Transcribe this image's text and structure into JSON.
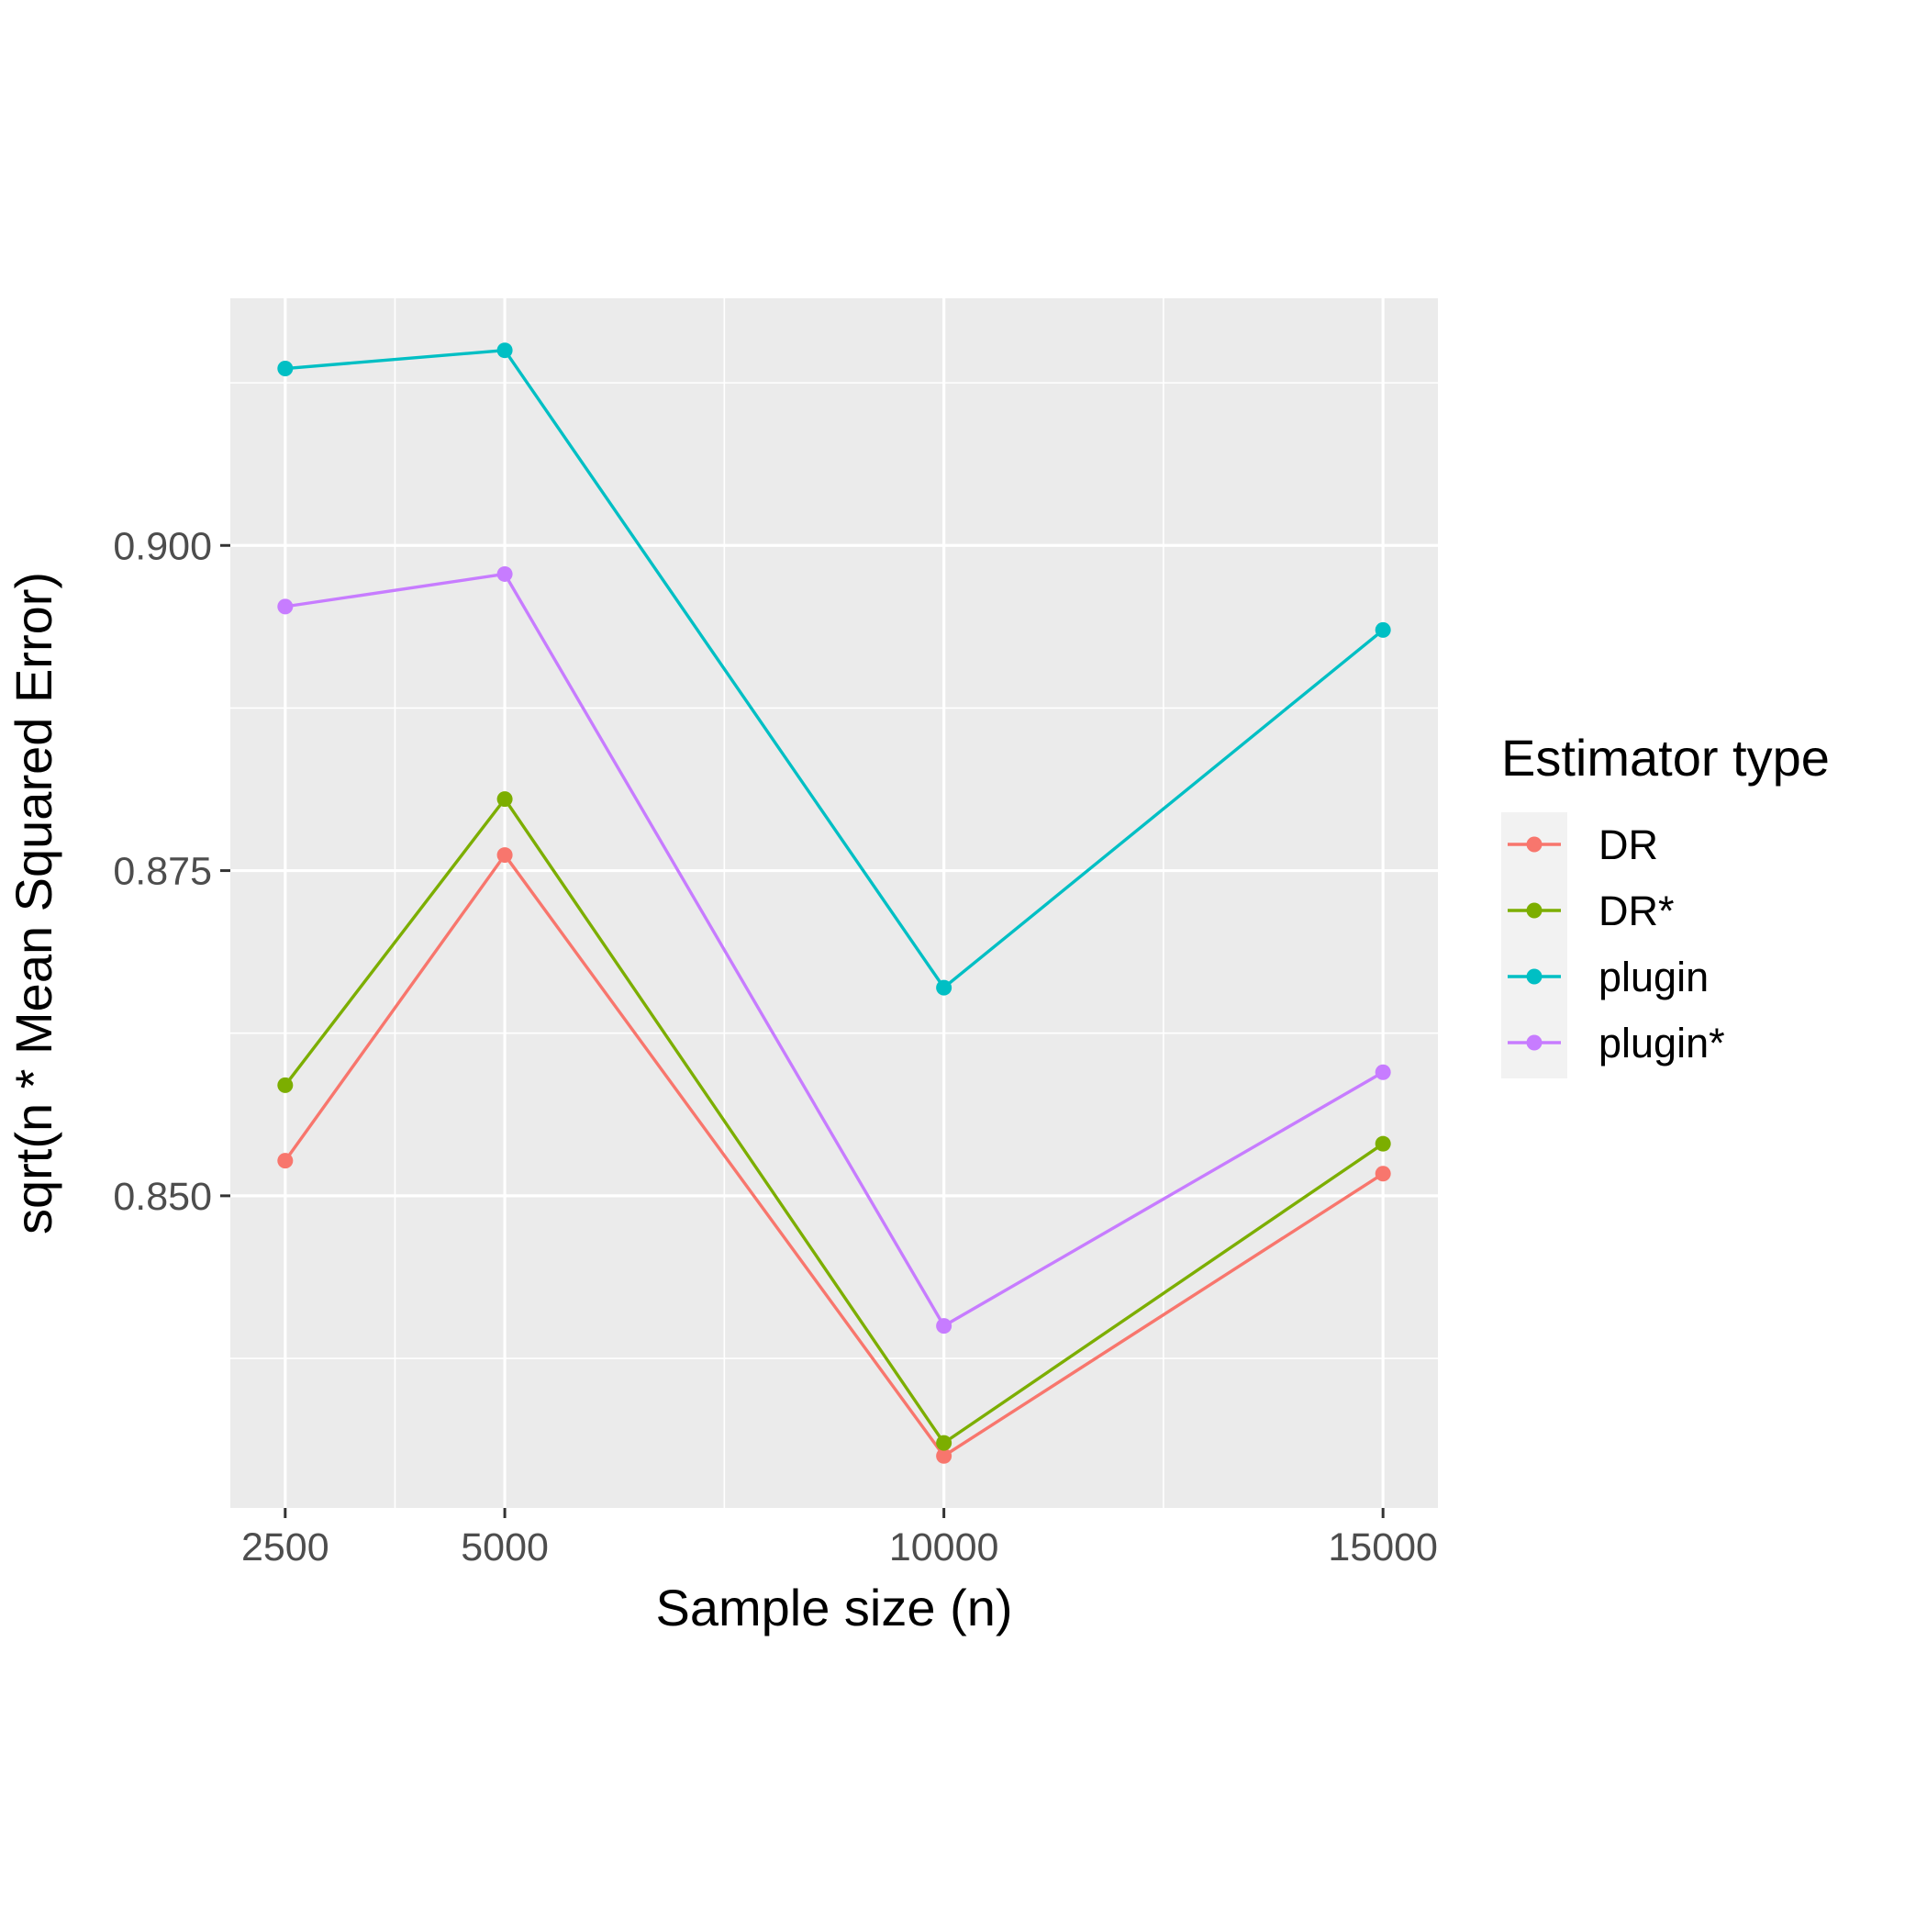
{
  "chart_data": {
    "type": "line",
    "title": "",
    "xlabel": "Sample size (n)",
    "ylabel": "sqrt(n * Mean Squared Error)",
    "x": [
      2500,
      5000,
      10000,
      15000
    ],
    "x_ticks": [
      2500,
      5000,
      10000,
      15000
    ],
    "x_tick_labels": [
      "2500",
      "5000",
      "10000",
      "15000"
    ],
    "y_ticks": [
      0.85,
      0.875,
      0.9
    ],
    "y_tick_labels": [
      "0.850",
      "0.875",
      "0.900"
    ],
    "xlim": [
      1875,
      15625
    ],
    "ylim": [
      0.826,
      0.919
    ],
    "grid": true,
    "legend": {
      "title": "Estimator type",
      "position": "right"
    },
    "series": [
      {
        "name": "DR",
        "color": "#F8766D",
        "values": [
          0.8527,
          0.8762,
          0.83,
          0.8517
        ]
      },
      {
        "name": "DR*",
        "color": "#7CAE00",
        "values": [
          0.8585,
          0.8805,
          0.831,
          0.854
        ]
      },
      {
        "name": "plugin",
        "color": "#00BFC4",
        "values": [
          0.9136,
          0.915,
          0.866,
          0.8935
        ]
      },
      {
        "name": "plugin*",
        "color": "#C77CFF",
        "values": [
          0.8953,
          0.8978,
          0.84,
          0.8595
        ]
      }
    ]
  }
}
